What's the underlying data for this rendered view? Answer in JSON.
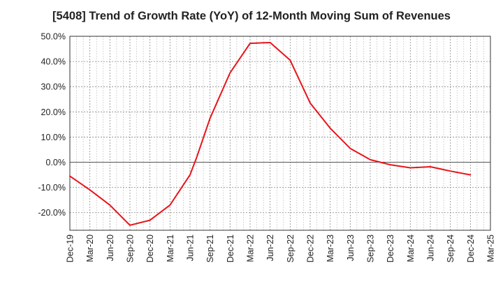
{
  "chart_data": {
    "type": "line",
    "title": "[5408]  Trend of Growth Rate (YoY) of 12-Month Moving Sum of Revenues",
    "xlabel": "",
    "ylabel": "",
    "ylim": [
      -27,
      50
    ],
    "y_ticks": [
      50,
      40,
      30,
      20,
      10,
      0,
      -10,
      -20
    ],
    "y_tick_labels": [
      "50.0%",
      "40.0%",
      "30.0%",
      "20.0%",
      "10.0%",
      "0.0%",
      "-10.0%",
      "-20.0%"
    ],
    "x_tick_labels": [
      "Dec-19",
      "Mar-20",
      "Jun-20",
      "Sep-20",
      "Dec-20",
      "Mar-21",
      "Jun-21",
      "Sep-21",
      "Dec-21",
      "Mar-22",
      "Jun-22",
      "Sep-22",
      "Dec-22",
      "Mar-23",
      "Jun-23",
      "Sep-23",
      "Dec-23",
      "Mar-24",
      "Jun-24",
      "Sep-24",
      "Dec-24",
      "Mar-25"
    ],
    "grid": true,
    "line_color": "#e8141a",
    "series": [
      {
        "name": "",
        "x": [
          "Dec-19",
          "Mar-20",
          "Jun-20",
          "Sep-20",
          "Dec-20",
          "Mar-21",
          "Jun-21",
          "Jul-21",
          "Sep-21",
          "Dec-21",
          "Mar-22",
          "Jun-22",
          "Sep-22",
          "Dec-22",
          "Mar-23",
          "Jun-23",
          "Sep-23",
          "Dec-23",
          "Mar-24",
          "Jun-24",
          "Sep-24",
          "Dec-24"
        ],
        "values": [
          -5.5,
          -11.0,
          -17.0,
          -25.0,
          -23.0,
          -17.0,
          -5.0,
          2.0,
          17.5,
          35.5,
          47.2,
          47.5,
          40.5,
          23.5,
          13.5,
          5.5,
          1.0,
          -1.0,
          -2.2,
          -1.8,
          -3.5,
          -5.0
        ]
      }
    ]
  }
}
